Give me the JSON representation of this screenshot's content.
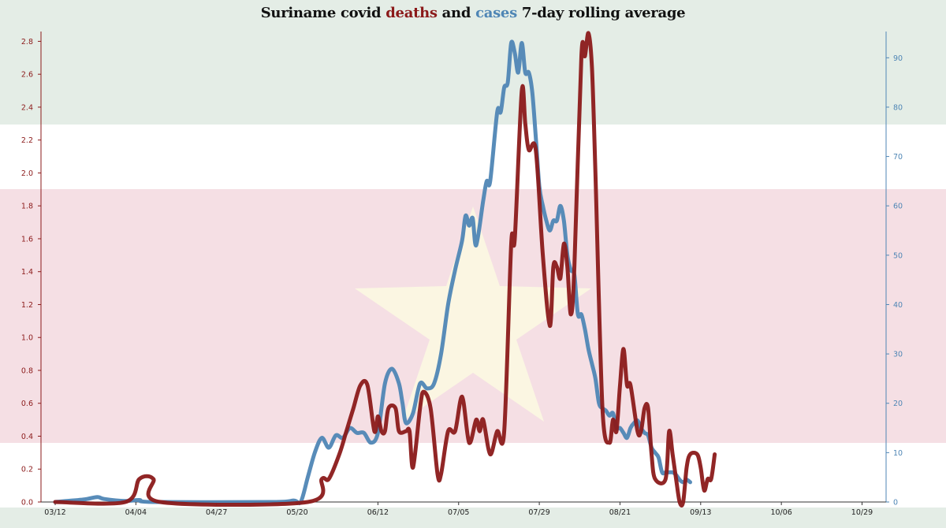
{
  "title": {
    "part1": "Suriname covid ",
    "deaths_word": "deaths",
    "part2": " and ",
    "cases_word": "cases",
    "part3": " 7-day rolling average"
  },
  "colors": {
    "deaths": "#8b1a1a",
    "cases": "#4f86b5",
    "flag_green": "#e4ede6",
    "flag_red": "#f5dfe4",
    "flag_star": "#fbf6e2"
  },
  "chart_data": {
    "type": "line",
    "title": "Suriname covid deaths and cases 7-day rolling average",
    "x_tick_labels": [
      "03/12",
      "04/04",
      "04/27",
      "05/20",
      "06/12",
      "07/05",
      "07/29",
      "08/21",
      "09/13",
      "10/06",
      "10/29"
    ],
    "y_left": {
      "range": [
        0,
        2.85
      ],
      "ticks": [
        "0.0",
        "0.2",
        "0.4",
        "0.6",
        "0.8",
        "1.0",
        "1.2",
        "1.4",
        "1.6",
        "1.8",
        "2.0",
        "2.2",
        "2.4",
        "2.6",
        "2.8"
      ]
    },
    "y_right": {
      "range": [
        0,
        95
      ],
      "ticks": [
        "0",
        "10",
        "20",
        "30",
        "40",
        "50",
        "60",
        "70",
        "80",
        "90"
      ]
    },
    "grid": false,
    "series": [
      {
        "name": "deaths",
        "axis": "left",
        "points": [
          [
            0,
            0
          ],
          [
            20,
            0
          ],
          [
            24,
            0.14
          ],
          [
            28,
            0.14
          ],
          [
            30,
            0
          ],
          [
            72,
            0
          ],
          [
            76,
            0.14
          ],
          [
            78,
            0.14
          ],
          [
            81,
            0.29
          ],
          [
            83,
            0.43
          ],
          [
            85,
            0.57
          ],
          [
            87,
            0.71
          ],
          [
            89,
            0.71
          ],
          [
            91,
            0.43
          ],
          [
            92,
            0.52
          ],
          [
            93,
            0.43
          ],
          [
            94,
            0.43
          ],
          [
            95,
            0.57
          ],
          [
            97,
            0.57
          ],
          [
            98,
            0.43
          ],
          [
            100,
            0.43
          ],
          [
            101,
            0.43
          ],
          [
            102,
            0.21
          ],
          [
            104,
            0.57
          ],
          [
            105,
            0.67
          ],
          [
            107,
            0.57
          ],
          [
            109,
            0.17
          ],
          [
            110,
            0.17
          ],
          [
            112,
            0.43
          ],
          [
            114,
            0.43
          ],
          [
            116,
            0.64
          ],
          [
            118,
            0.36
          ],
          [
            120,
            0.5
          ],
          [
            121,
            0.43
          ],
          [
            122,
            0.5
          ],
          [
            124,
            0.29
          ],
          [
            126,
            0.43
          ],
          [
            128,
            0.43
          ],
          [
            130,
            1.57
          ],
          [
            131,
            1.6
          ],
          [
            133,
            2.5
          ],
          [
            134,
            2.3
          ],
          [
            135,
            2.14
          ],
          [
            137,
            2.14
          ],
          [
            139,
            1.5
          ],
          [
            141,
            1.07
          ],
          [
            142,
            1.43
          ],
          [
            143,
            1.43
          ],
          [
            144,
            1.36
          ],
          [
            145,
            1.57
          ],
          [
            146,
            1.43
          ],
          [
            147,
            1.14
          ],
          [
            148,
            1.43
          ],
          [
            150,
            2.71
          ],
          [
            151,
            2.71
          ],
          [
            152,
            2.85
          ],
          [
            153,
            2.64
          ],
          [
            154,
            2.0
          ],
          [
            156,
            0.57
          ],
          [
            158,
            0.36
          ],
          [
            159,
            0.5
          ],
          [
            160,
            0.43
          ],
          [
            161,
            0.71
          ],
          [
            162,
            0.93
          ],
          [
            163,
            0.71
          ],
          [
            164,
            0.71
          ],
          [
            166,
            0.43
          ],
          [
            167,
            0.43
          ],
          [
            168,
            0.57
          ],
          [
            169,
            0.57
          ],
          [
            170,
            0.29
          ],
          [
            171,
            0.14
          ],
          [
            174,
            0.14
          ],
          [
            175,
            0.43
          ],
          [
            176,
            0.29
          ],
          [
            177,
            0.14
          ],
          [
            178,
            0.0
          ],
          [
            179,
            0.0
          ],
          [
            180,
            0.21
          ],
          [
            181,
            0.29
          ],
          [
            183,
            0.29
          ],
          [
            184,
            0.21
          ],
          [
            185,
            0.07
          ],
          [
            186,
            0.14
          ],
          [
            187,
            0.14
          ],
          [
            188,
            0.29
          ]
        ]
      },
      {
        "name": "cases",
        "axis": "right",
        "points": [
          [
            0,
            0
          ],
          [
            8,
            0.5
          ],
          [
            12,
            1
          ],
          [
            14,
            0.6
          ],
          [
            20,
            0.2
          ],
          [
            24,
            0.4
          ],
          [
            28,
            0
          ],
          [
            62,
            0
          ],
          [
            68,
            0.3
          ],
          [
            70,
            0
          ],
          [
            72,
            5
          ],
          [
            74,
            10
          ],
          [
            76,
            13
          ],
          [
            78,
            11
          ],
          [
            80,
            13.5
          ],
          [
            82,
            13
          ],
          [
            84,
            15
          ],
          [
            86,
            14
          ],
          [
            88,
            14
          ],
          [
            90,
            12
          ],
          [
            92,
            14
          ],
          [
            94,
            24
          ],
          [
            96,
            27
          ],
          [
            98,
            24
          ],
          [
            99,
            20
          ],
          [
            100,
            16
          ],
          [
            102,
            18
          ],
          [
            104,
            24
          ],
          [
            106,
            23
          ],
          [
            108,
            24
          ],
          [
            110,
            30
          ],
          [
            112,
            40
          ],
          [
            114,
            47
          ],
          [
            116,
            53
          ],
          [
            117,
            58
          ],
          [
            118,
            56
          ],
          [
            119,
            57.5
          ],
          [
            120,
            52
          ],
          [
            122,
            61
          ],
          [
            123,
            65
          ],
          [
            124,
            65
          ],
          [
            126,
            79
          ],
          [
            127,
            79
          ],
          [
            128,
            84
          ],
          [
            129,
            85
          ],
          [
            130,
            93
          ],
          [
            131,
            91
          ],
          [
            132,
            87
          ],
          [
            133,
            93
          ],
          [
            134,
            87
          ],
          [
            135,
            87
          ],
          [
            136,
            83
          ],
          [
            137,
            74
          ],
          [
            138,
            64
          ],
          [
            139,
            60
          ],
          [
            140,
            57
          ],
          [
            141,
            55
          ],
          [
            142,
            57
          ],
          [
            143,
            57
          ],
          [
            144,
            60
          ],
          [
            145,
            57
          ],
          [
            146,
            50
          ],
          [
            147,
            47
          ],
          [
            148,
            46
          ],
          [
            149,
            38
          ],
          [
            150,
            38
          ],
          [
            151,
            35
          ],
          [
            152,
            31
          ],
          [
            153,
            28
          ],
          [
            154,
            25
          ],
          [
            155,
            20
          ],
          [
            156,
            19
          ],
          [
            157,
            18.5
          ],
          [
            158,
            17.5
          ],
          [
            159,
            18
          ],
          [
            160,
            15
          ],
          [
            161,
            15
          ],
          [
            162,
            14
          ],
          [
            163,
            13
          ],
          [
            164,
            15
          ],
          [
            165,
            16
          ],
          [
            166,
            16.5
          ],
          [
            167,
            15
          ],
          [
            168,
            14
          ],
          [
            169,
            13.5
          ],
          [
            170,
            11
          ],
          [
            171,
            10
          ],
          [
            172,
            9
          ],
          [
            173,
            6
          ],
          [
            174,
            6
          ],
          [
            175,
            6
          ],
          [
            176,
            6
          ],
          [
            177,
            5.5
          ],
          [
            178,
            4.5
          ],
          [
            179,
            4
          ],
          [
            180,
            4.5
          ],
          [
            181,
            4
          ]
        ]
      }
    ]
  }
}
